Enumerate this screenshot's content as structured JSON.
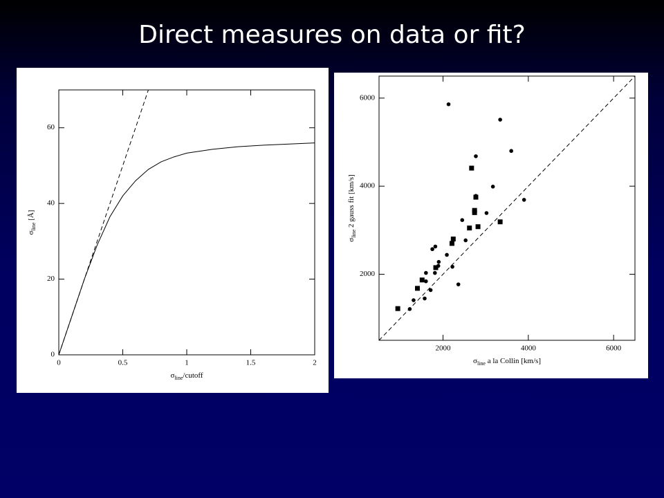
{
  "slide": {
    "title": "Direct measures on data or fit?"
  },
  "chart_data": [
    {
      "type": "line",
      "xlabel": [
        "σ",
        "line",
        "/cutoff"
      ],
      "ylabel": [
        "σ",
        "line",
        " [Å]"
      ],
      "xlim": [
        0,
        2
      ],
      "xticks": [
        0,
        0.5,
        1,
        1.5,
        2
      ],
      "ylim": [
        0,
        70
      ],
      "yticks": [
        0,
        20,
        40,
        60
      ],
      "series": [
        {
          "color": "#000",
          "dash": false,
          "x": [
            0,
            0.1,
            0.2,
            0.3,
            0.4,
            0.5,
            0.6,
            0.7,
            0.8,
            0.9,
            1.0,
            1.2,
            1.4,
            1.6,
            1.8,
            2.0
          ],
          "values": [
            0,
            10,
            20,
            29,
            36.5,
            42,
            46,
            49,
            51,
            52.3,
            53.3,
            54.3,
            55,
            55.4,
            55.7,
            56
          ]
        },
        {
          "color": "#000",
          "dash": true,
          "x": [
            0,
            0.7
          ],
          "values": [
            0,
            70
          ]
        }
      ]
    },
    {
      "type": "scatter",
      "xlabel": [
        "σ",
        "line",
        " a la Collin [km/s]"
      ],
      "ylabel": [
        "σ",
        "line",
        " 2 gauss fit [km/s]"
      ],
      "xlim": [
        500,
        6500
      ],
      "xticks": [
        2000,
        4000,
        6000
      ],
      "ylim": [
        500,
        6500
      ],
      "yticks": [
        2000,
        4000,
        6000
      ],
      "reference": {
        "x": [
          500,
          6500
        ],
        "values": [
          500,
          6500
        ],
        "dash": true,
        "color": "#000"
      },
      "series": [
        {
          "marker": "circle",
          "color": "#000",
          "x": [
            2130,
            3340,
            3600,
            2770,
            3170,
            3900,
            2770,
            2450,
            3020,
            2530,
            1820,
            1750,
            2090,
            1900,
            1890,
            2220,
            1600,
            1810,
            1600,
            1710,
            2360,
            1310,
            1570,
            1220
          ],
          "values": [
            5860,
            5510,
            4800,
            4680,
            3990,
            3690,
            3780,
            3230,
            3390,
            2770,
            2630,
            2570,
            2440,
            2280,
            2190,
            2170,
            2030,
            2030,
            1840,
            1640,
            1770,
            1410,
            1450,
            1210
          ]
        },
        {
          "marker": "square",
          "color": "#000",
          "x": [
            2670,
            2770,
            2740,
            2740,
            3340,
            2620,
            2820,
            2240,
            2210,
            1830,
            1510,
            1400,
            940
          ],
          "values": [
            4410,
            3750,
            3450,
            3400,
            3190,
            3050,
            3080,
            2800,
            2700,
            2150,
            1870,
            1680,
            1220
          ]
        }
      ]
    }
  ]
}
